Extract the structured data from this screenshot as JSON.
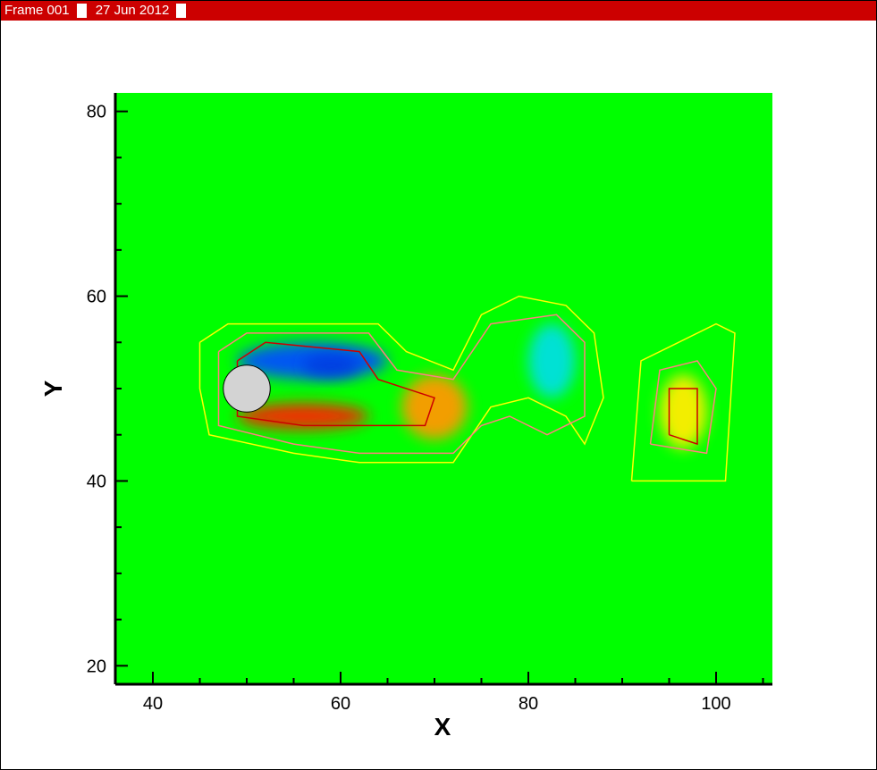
{
  "header": {
    "frame_label": "Frame 001",
    "date_label": "27 Jun 2012"
  },
  "chart_data": {
    "type": "heatmap",
    "title": "",
    "xlabel": "X",
    "ylabel": "Y",
    "xlim": [
      36,
      106
    ],
    "ylim": [
      18,
      82
    ],
    "xticks": [
      40,
      60,
      80,
      100
    ],
    "yticks": [
      20,
      40,
      60,
      80
    ],
    "background_color": "#00ff00",
    "cylinder": {
      "center_x": 50,
      "center_y": 50,
      "radius": 2.5,
      "color": "#d3d3d3"
    },
    "vortices": [
      {
        "label": "blue",
        "x": 57,
        "y": 53,
        "rx": 8,
        "ry": 2,
        "color": "#0050ff"
      },
      {
        "label": "dark-blue",
        "x": 59,
        "y": 52.5,
        "rx": 3,
        "ry": 1.2,
        "color": "#003ce0"
      },
      {
        "label": "red",
        "x": 56,
        "y": 47,
        "rx": 7,
        "ry": 1.4,
        "color": "#ff2000"
      },
      {
        "label": "orange",
        "x": 70,
        "y": 48,
        "rx": 3.5,
        "ry": 3.5,
        "color": "#ff9900"
      },
      {
        "label": "cyan",
        "x": 82.5,
        "y": 53,
        "rx": 2.5,
        "ry": 4,
        "color": "#00e0e0"
      },
      {
        "label": "yellow",
        "x": 96.5,
        "y": 47.5,
        "rx": 2.5,
        "ry": 4,
        "color": "#ffee00"
      }
    ],
    "contour_lines": [
      {
        "color": "#ffff00",
        "points": [
          [
            45,
            55
          ],
          [
            48,
            57
          ],
          [
            64,
            57
          ],
          [
            67,
            54
          ],
          [
            72,
            52
          ],
          [
            75,
            58
          ],
          [
            79,
            60
          ],
          [
            84,
            59
          ],
          [
            87,
            56
          ],
          [
            88,
            49
          ],
          [
            86,
            44
          ],
          [
            84,
            47
          ],
          [
            80,
            49
          ],
          [
            76,
            48
          ],
          [
            74,
            45
          ],
          [
            72,
            42
          ],
          [
            62,
            42
          ],
          [
            55,
            43
          ],
          [
            46,
            45
          ],
          [
            45,
            50
          ],
          [
            45,
            55
          ]
        ]
      },
      {
        "color": "#ff8080",
        "points": [
          [
            47,
            54
          ],
          [
            50,
            56
          ],
          [
            63,
            56
          ],
          [
            66,
            52
          ],
          [
            72,
            51
          ],
          [
            76,
            57
          ],
          [
            83,
            58
          ],
          [
            86,
            55
          ],
          [
            86,
            47
          ],
          [
            82,
            45
          ],
          [
            78,
            47
          ],
          [
            75,
            46
          ],
          [
            72,
            43
          ],
          [
            62,
            43
          ],
          [
            55,
            44
          ],
          [
            47,
            46
          ],
          [
            47,
            54
          ]
        ]
      },
      {
        "color": "#cc0000",
        "points": [
          [
            49,
            53
          ],
          [
            52,
            55
          ],
          [
            62,
            54
          ],
          [
            64,
            51
          ],
          [
            70,
            49
          ],
          [
            69,
            46
          ],
          [
            63,
            46
          ],
          [
            56,
            46
          ],
          [
            49,
            47
          ],
          [
            49,
            53
          ]
        ]
      },
      {
        "color": "#ffff00",
        "points": [
          [
            91,
            40
          ],
          [
            92,
            53
          ],
          [
            96,
            55
          ],
          [
            100,
            57
          ],
          [
            102,
            56
          ],
          [
            101,
            40
          ],
          [
            91,
            40
          ]
        ]
      },
      {
        "color": "#ff8080",
        "points": [
          [
            93,
            44
          ],
          [
            94,
            52
          ],
          [
            98,
            53
          ],
          [
            100,
            50
          ],
          [
            99,
            43
          ],
          [
            93,
            44
          ]
        ]
      },
      {
        "color": "#cc0000",
        "points": [
          [
            95,
            45
          ],
          [
            95,
            50
          ],
          [
            98,
            50
          ],
          [
            98,
            44
          ],
          [
            95,
            45
          ]
        ]
      }
    ]
  }
}
